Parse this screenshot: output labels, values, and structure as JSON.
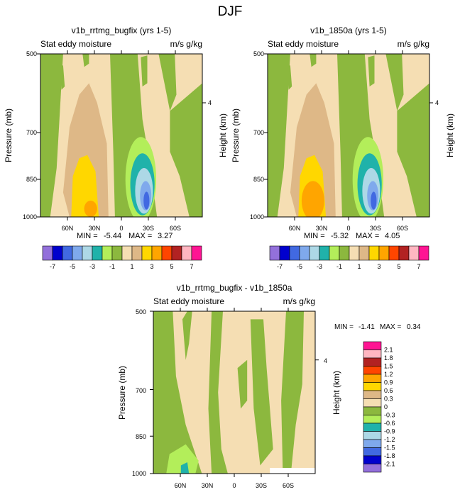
{
  "figure": {
    "title": "DJF"
  },
  "chart_data": [
    {
      "type": "heatmap",
      "title": "v1b_rrtmg_bugfix (yrs 1-5)",
      "left_label": "Stat eddy moisture",
      "right_label": "m/s g/kg",
      "ylabel": "Pressure (mb)",
      "y2label": "Height (km)",
      "y_ticks": [
        "500",
        "700",
        "850",
        "1000"
      ],
      "y2_ticks": [
        "4"
      ],
      "x_ticks": [
        "60N",
        "30N",
        "0",
        "30S",
        "60S"
      ],
      "min": "-5.44",
      "max": "3.27",
      "min_label": "MIN =",
      "max_label": "MAX ="
    },
    {
      "type": "heatmap",
      "title": "v1b_1850a (yrs 1-5)",
      "left_label": "Stat eddy moisture",
      "right_label": "m/s g/kg",
      "ylabel": "Pressure (mb)",
      "y2label": "Height (km)",
      "y_ticks": [
        "500",
        "700",
        "850",
        "1000"
      ],
      "y2_ticks": [
        "4"
      ],
      "x_ticks": [
        "60N",
        "30N",
        "0",
        "30S",
        "60S"
      ],
      "min": "-5.32",
      "max": "4.05",
      "min_label": "MIN =",
      "max_label": "MAX ="
    },
    {
      "type": "heatmap",
      "title": "v1b_rrtmg_bugfix - v1b_1850a",
      "left_label": "Stat eddy moisture",
      "right_label": "m/s g/kg",
      "ylabel": "Pressure (mb)",
      "y2label": "Height (km)",
      "y_ticks": [
        "500",
        "700",
        "850",
        "1000"
      ],
      "y2_ticks": [
        "4"
      ],
      "x_ticks": [
        "60N",
        "30N",
        "0",
        "30S",
        "60S"
      ],
      "min": "-1.41",
      "max": "0.34",
      "min_label": "MIN =",
      "max_label": "MAX ="
    }
  ],
  "top_colorbar": {
    "colors": [
      "#9370db",
      "#0000cd",
      "#4169e1",
      "#7fa9ec",
      "#add8e6",
      "#20b2aa",
      "#b3ee5a",
      "#8cb83e",
      "#f5deb3",
      "#deb887",
      "#ffd700",
      "#ffa500",
      "#ff4500",
      "#b22222",
      "#ffb6c1",
      "#ff1493"
    ],
    "labels": [
      "-7",
      "-5",
      "-3",
      "-1",
      "1",
      "3",
      "5",
      "7"
    ]
  },
  "diff_colorbar": {
    "colors": [
      "#ff1493",
      "#ffb6c1",
      "#b22222",
      "#ff4500",
      "#ffa500",
      "#ffd700",
      "#deb887",
      "#f5deb3",
      "#8cb83e",
      "#b3ee5a",
      "#20b2aa",
      "#add8e6",
      "#7fa9ec",
      "#4169e1",
      "#0000cd",
      "#9370db"
    ],
    "labels": [
      "2.1",
      "1.8",
      "1.5",
      "1.2",
      "0.9",
      "0.6",
      "0.3",
      "0",
      "-0.3",
      "-0.6",
      "-0.9",
      "-1.2",
      "-1.5",
      "-1.8",
      "-2.1"
    ]
  },
  "palette": {
    "green": "#8cb83e",
    "wheat": "#f5deb3",
    "tan": "#deb887",
    "yellow": "#ffd700",
    "orange": "#ffa500",
    "lightgreen": "#b3ee5a",
    "teal": "#20b2aa",
    "lightblue": "#add8e6",
    "midblue": "#7fa9ec",
    "royal": "#4169e1"
  }
}
